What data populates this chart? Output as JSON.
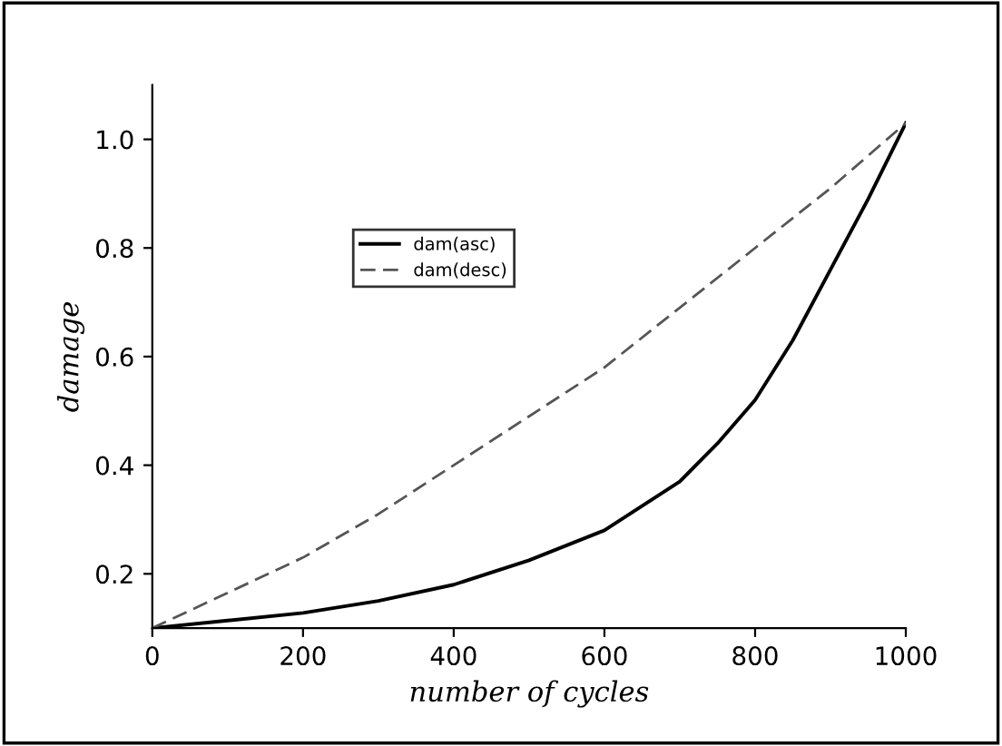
{
  "chart_data": {
    "type": "line",
    "xlabel": "number of cycles",
    "ylabel": "damage",
    "xlim": [
      0,
      1000
    ],
    "ylim": [
      0.1,
      1.1
    ],
    "xticks": [
      0,
      200,
      400,
      600,
      800,
      1000
    ],
    "yticks": [
      {
        "value": 0.2,
        "label": "0.2"
      },
      {
        "value": 0.4,
        "label": "0.4"
      },
      {
        "value": 0.6,
        "label": "0.6"
      },
      {
        "value": 0.8,
        "label": "0.8"
      },
      {
        "value": 1.0,
        "label": "1.0"
      }
    ],
    "grid": false,
    "legend": "top left",
    "marker": "none",
    "series": [
      {
        "name": "dam(asc)",
        "color": "#000000",
        "line_style": "solid",
        "x": [
          0,
          100,
          200,
          300,
          400,
          500,
          600,
          700,
          750,
          800,
          850,
          900,
          950,
          1000
        ],
        "values": [
          0.1,
          0.114,
          0.128,
          0.15,
          0.18,
          0.225,
          0.28,
          0.37,
          0.44,
          0.52,
          0.63,
          0.76,
          0.89,
          1.03
        ]
      },
      {
        "name": "dam(desc)",
        "color": "#555555",
        "line_style": "dashed",
        "x": [
          0,
          100,
          200,
          300,
          400,
          500,
          600,
          700,
          800,
          900,
          1000
        ],
        "values": [
          0.1,
          0.165,
          0.23,
          0.31,
          0.4,
          0.49,
          0.58,
          0.69,
          0.8,
          0.91,
          1.03
        ]
      }
    ]
  }
}
